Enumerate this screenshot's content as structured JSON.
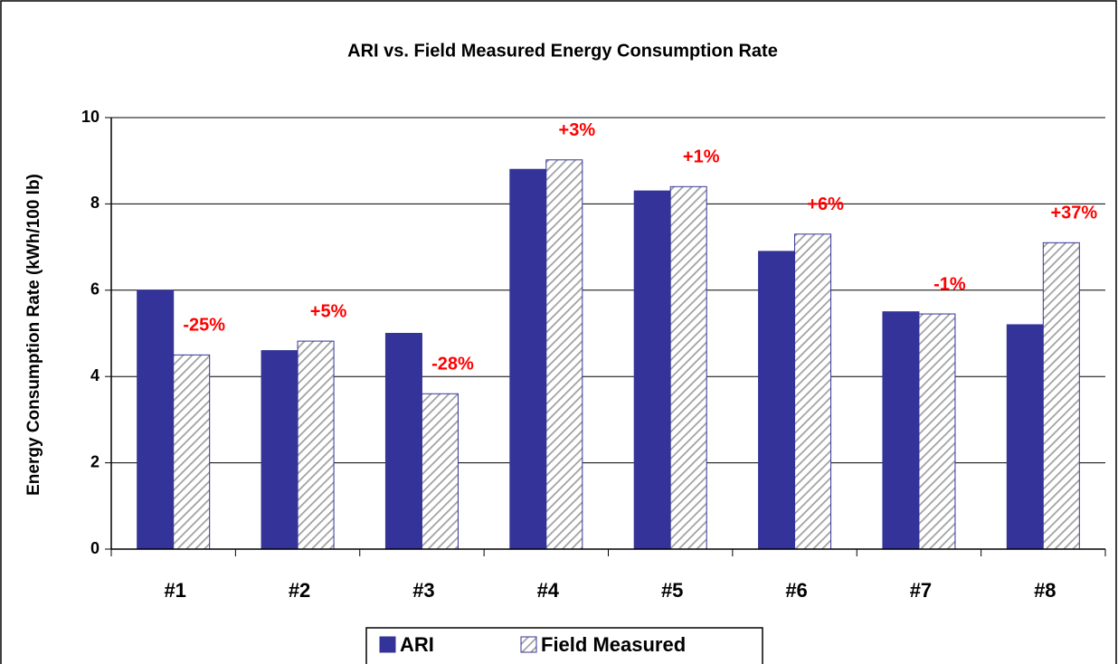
{
  "chart_data": {
    "type": "bar",
    "title": "ARI vs. Field Measured Energy Consumption Rate",
    "y_label": "Energy Consumption Rate (kWh/100 lb)",
    "categories": [
      "#1",
      "#2",
      "#3",
      "#4",
      "#5",
      "#6",
      "#7",
      "#8"
    ],
    "series": [
      {
        "name": "ARI",
        "color": "#333399",
        "values": [
          6.0,
          4.6,
          5.0,
          8.8,
          8.3,
          6.9,
          5.5,
          5.2
        ]
      },
      {
        "name": "Field Measured",
        "color": "#999999",
        "hatch": true,
        "values": [
          4.5,
          4.82,
          3.6,
          9.02,
          8.4,
          7.3,
          5.45,
          7.1
        ]
      }
    ],
    "annotations": [
      "-25%",
      "+5%",
      "-28%",
      "+3%",
      "+1%",
      "+6%",
      "-1%",
      "+37%"
    ],
    "ylim": [
      0,
      10
    ],
    "yticks": [
      0,
      2,
      4,
      6,
      8,
      10
    ],
    "grid": true,
    "legend": "bottom"
  }
}
